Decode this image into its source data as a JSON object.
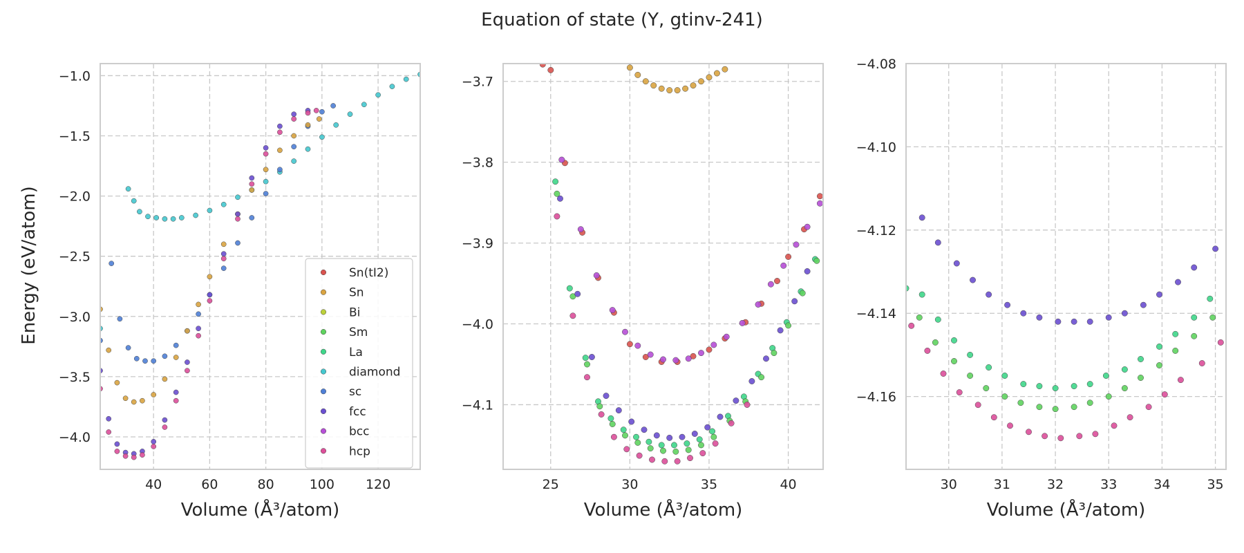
{
  "title": "Equation of state (Y, gtinv-241)",
  "ylabel": "Energy (eV/atom)",
  "legend": {
    "placement": "lower-right",
    "entries": [
      {
        "name": "Sn(tI2)",
        "color": "#d9534f"
      },
      {
        "name": "Sn",
        "color": "#d9a441"
      },
      {
        "name": "Bi",
        "color": "#bcd03a"
      },
      {
        "name": "Sm",
        "color": "#5fd35f"
      },
      {
        "name": "La",
        "color": "#3fd68a"
      },
      {
        "name": "diamond",
        "color": "#45c8cf"
      },
      {
        "name": "sc",
        "color": "#4f7fd6"
      },
      {
        "name": "fcc",
        "color": "#6a4fd0"
      },
      {
        "name": "bcc",
        "color": "#b64fd6"
      },
      {
        "name": "hcp",
        "color": "#dc4f9a"
      }
    ]
  },
  "chart_data": [
    {
      "type": "scatter",
      "panel": "left",
      "xlabel": "Volume (Å³/atom)",
      "ylabel": "Energy (eV/atom)",
      "xlim": [
        21,
        135
      ],
      "ylim": [
        -4.27,
        -0.9
      ],
      "xticks": [
        40,
        60,
        80,
        100,
        120
      ],
      "yticks": [
        -4.0,
        -3.5,
        -3.0,
        -2.5,
        -2.0,
        -1.5,
        -1.0
      ],
      "tick_labels": {
        "x": [
          "40",
          "60",
          "80",
          "100",
          "120"
        ],
        "y": [
          "−4.0",
          "−3.5",
          "−3.0",
          "−2.5",
          "−2.0",
          "−1.5",
          "−1.0"
        ]
      },
      "grid": true,
      "legend": true,
      "series": [
        {
          "name": "diamond",
          "x": [
            21,
            31,
            33,
            35,
            38,
            41,
            44,
            47,
            50,
            55,
            60,
            65,
            70,
            75,
            80,
            85,
            90,
            95,
            100,
            105,
            110,
            115,
            120,
            125,
            130,
            135
          ],
          "y": [
            -3.1,
            -1.94,
            -2.04,
            -2.13,
            -2.17,
            -2.18,
            -2.19,
            -2.19,
            -2.18,
            -2.16,
            -2.12,
            -2.07,
            -2.01,
            -1.95,
            -1.88,
            -1.8,
            -1.71,
            -1.61,
            -1.51,
            -1.41,
            -1.32,
            -1.24,
            -1.16,
            -1.09,
            -1.03,
            -0.99
          ]
        },
        {
          "name": "sc",
          "x": [
            21,
            25,
            28,
            31,
            34,
            37,
            40,
            44,
            48,
            52,
            56,
            60,
            65,
            70,
            75,
            80,
            85,
            90,
            95,
            100,
            104
          ],
          "y": [
            -3.2,
            -2.56,
            -3.02,
            -3.26,
            -3.35,
            -3.37,
            -3.37,
            -3.33,
            -3.24,
            -3.12,
            -2.98,
            -2.82,
            -2.6,
            -2.39,
            -2.18,
            -1.98,
            -1.78,
            -1.59,
            -1.42,
            -1.3,
            -1.25
          ]
        },
        {
          "name": "Sn",
          "x": [
            21,
            24,
            27,
            30,
            33,
            36,
            40,
            44,
            48,
            52,
            56,
            60,
            65,
            70,
            75,
            80,
            85,
            90,
            95,
            99
          ],
          "y": [
            -2.94,
            -3.28,
            -3.55,
            -3.68,
            -3.71,
            -3.7,
            -3.65,
            -3.52,
            -3.34,
            -3.12,
            -2.9,
            -2.67,
            -2.4,
            -2.15,
            -1.95,
            -1.78,
            -1.62,
            -1.5,
            -1.41,
            -1.36
          ]
        },
        {
          "name": "fcc",
          "x": [
            21,
            24,
            27,
            30,
            33,
            36,
            40,
            44,
            48,
            52,
            56,
            60,
            65,
            70,
            75,
            80,
            85,
            90,
            95
          ],
          "y": [
            -3.45,
            -3.85,
            -4.06,
            -4.13,
            -4.14,
            -4.12,
            -4.04,
            -3.86,
            -3.63,
            -3.38,
            -3.1,
            -2.82,
            -2.48,
            -2.15,
            -1.85,
            -1.6,
            -1.42,
            -1.32,
            -1.29
          ]
        },
        {
          "name": "hcp",
          "x": [
            21,
            24,
            27,
            30,
            33,
            36,
            40,
            44,
            48,
            52,
            56,
            60,
            65,
            70,
            75,
            80,
            85,
            90,
            95,
            98
          ],
          "y": [
            -3.6,
            -3.96,
            -4.12,
            -4.16,
            -4.17,
            -4.15,
            -4.08,
            -3.92,
            -3.7,
            -3.45,
            -3.16,
            -2.87,
            -2.52,
            -2.19,
            -1.9,
            -1.65,
            -1.47,
            -1.36,
            -1.31,
            -1.29
          ]
        }
      ]
    },
    {
      "type": "scatter",
      "panel": "middle",
      "xlabel": "Volume (Å³/atom)",
      "xlim": [
        22,
        42.2
      ],
      "ylim": [
        -4.18,
        -3.678
      ],
      "xticks": [
        25,
        30,
        35,
        40
      ],
      "yticks": [
        -4.1,
        -4.0,
        -3.9,
        -3.8,
        -3.7
      ],
      "tick_labels": {
        "x": [
          "25",
          "30",
          "35",
          "40"
        ],
        "y": [
          "−4.1",
          "−4.0",
          "−3.9",
          "−3.8",
          "−3.7"
        ]
      },
      "grid": true,
      "series": [
        {
          "name": "Sn",
          "x": [
            30,
            30.5,
            31,
            31.5,
            32,
            32.5,
            33,
            33.5,
            34,
            34.5,
            35,
            35.5,
            36
          ],
          "y": [
            -3.683,
            -3.692,
            -3.7,
            -3.705,
            -3.709,
            -3.711,
            -3.711,
            -3.709,
            -3.705,
            -3.7,
            -3.695,
            -3.69,
            -3.685
          ]
        },
        {
          "name": "Sn(tI2)",
          "x": [
            24.5,
            25,
            25.9,
            27,
            28,
            29,
            30,
            31,
            32,
            33,
            34,
            35,
            36,
            37.3,
            38.3,
            39.3,
            40,
            41,
            42
          ],
          "y": [
            -3.679,
            -3.686,
            -3.801,
            -3.887,
            -3.943,
            -3.986,
            -4.025,
            -4.041,
            -4.047,
            -4.047,
            -4.04,
            -4.032,
            -4.018,
            -3.998,
            -3.975,
            -3.947,
            -3.917,
            -3.883,
            -3.842
          ]
        },
        {
          "name": "bcc",
          "x": [
            25.7,
            26.9,
            27.9,
            28.9,
            29.7,
            30.5,
            31.3,
            32.1,
            32.9,
            33.7,
            34.5,
            35.3,
            36.1,
            37.1,
            38.1,
            38.9,
            39.7,
            40.5,
            41.2,
            42
          ],
          "y": [
            -3.797,
            -3.883,
            -3.94,
            -3.983,
            -4.01,
            -4.027,
            -4.038,
            -4.044,
            -4.045,
            -4.043,
            -4.036,
            -4.026,
            -4.016,
            -3.999,
            -3.976,
            -3.951,
            -3.928,
            -3.902,
            -3.88,
            -3.851
          ]
        },
        {
          "name": "La",
          "x": [
            25.3,
            26.2,
            27.2,
            28.0,
            28.8,
            29.6,
            30.4,
            31.2,
            32.0,
            32.8,
            33.6,
            34.4,
            35.2,
            36.2,
            37.2,
            38.1,
            39.0,
            39.9,
            40.8,
            41.7
          ],
          "y": [
            -3.824,
            -3.956,
            -4.042,
            -4.096,
            -4.117,
            -4.131,
            -4.14,
            -4.146,
            -4.15,
            -4.15,
            -4.148,
            -4.143,
            -4.133,
            -4.114,
            -4.09,
            -4.062,
            -4.03,
            -3.998,
            -3.96,
            -3.92
          ]
        },
        {
          "name": "Sm",
          "x": [
            25.4,
            26.4,
            27.3,
            28.1,
            28.9,
            29.7,
            30.5,
            31.3,
            32.1,
            32.9,
            33.7,
            34.5,
            35.3,
            36.3,
            37.3,
            38.3,
            39.1,
            40.0,
            40.9,
            41.8
          ],
          "y": [
            -3.839,
            -3.966,
            -4.05,
            -4.102,
            -4.124,
            -4.138,
            -4.147,
            -4.154,
            -4.157,
            -4.158,
            -4.156,
            -4.15,
            -4.14,
            -4.12,
            -4.096,
            -4.066,
            -4.036,
            -4.002,
            -3.962,
            -3.922
          ]
        },
        {
          "name": "fcc",
          "x": [
            25.6,
            26.7,
            27.6,
            28.5,
            29.3,
            30.1,
            30.9,
            31.7,
            32.5,
            33.3,
            34.1,
            34.9,
            35.7,
            36.7,
            37.7,
            38.6,
            39.5,
            40.4,
            41.2
          ],
          "y": [
            -3.845,
            -3.963,
            -4.041,
            -4.089,
            -4.107,
            -4.121,
            -4.131,
            -4.138,
            -4.141,
            -4.14,
            -4.136,
            -4.128,
            -4.115,
            -4.095,
            -4.071,
            -4.043,
            -4.008,
            -3.972,
            -3.935
          ]
        },
        {
          "name": "hcp",
          "x": [
            25.4,
            26.4,
            27.3,
            28.2,
            29.0,
            29.8,
            30.6,
            31.4,
            32.2,
            33.0,
            33.8,
            34.6,
            35.4,
            36.4,
            37.4
          ],
          "y": [
            -3.867,
            -3.99,
            -4.066,
            -4.112,
            -4.14,
            -4.155,
            -4.163,
            -4.168,
            -4.17,
            -4.17,
            -4.166,
            -4.16,
            -4.148,
            -4.123,
            -4.1
          ]
        }
      ]
    },
    {
      "type": "scatter",
      "panel": "right",
      "xlabel": "Volume (Å³/atom)",
      "xlim": [
        29.2,
        35.2
      ],
      "ylim": [
        -4.1775,
        -4.08
      ],
      "xticks": [
        30,
        31,
        32,
        33,
        34,
        35
      ],
      "yticks": [
        -4.16,
        -4.14,
        -4.12,
        -4.1,
        -4.08
      ],
      "tick_labels": {
        "x": [
          "30",
          "31",
          "32",
          "33",
          "34",
          "35"
        ],
        "y": [
          "−4.16",
          "−4.14",
          "−4.12",
          "−4.10",
          "−4.08"
        ]
      },
      "grid": true,
      "series": [
        {
          "name": "fcc",
          "x": [
            29.5,
            29.8,
            30.15,
            30.45,
            30.75,
            31.1,
            31.4,
            31.7,
            32.05,
            32.35,
            32.65,
            33.0,
            33.3,
            33.65,
            33.95,
            34.3,
            34.6,
            35.0
          ],
          "y": [
            -4.117,
            -4.123,
            -4.128,
            -4.132,
            -4.1355,
            -4.138,
            -4.14,
            -4.141,
            -4.142,
            -4.142,
            -4.142,
            -4.141,
            -4.14,
            -4.138,
            -4.1355,
            -4.1325,
            -4.129,
            -4.1245
          ]
        },
        {
          "name": "La",
          "x": [
            29.2,
            29.5,
            29.8,
            30.1,
            30.4,
            30.75,
            31.05,
            31.4,
            31.7,
            32.0,
            32.35,
            32.65,
            32.95,
            33.3,
            33.6,
            33.95,
            34.25,
            34.6,
            34.9
          ],
          "y": [
            -4.134,
            -4.1355,
            -4.1415,
            -4.1465,
            -4.15,
            -4.153,
            -4.155,
            -4.157,
            -4.1575,
            -4.158,
            -4.1575,
            -4.157,
            -4.155,
            -4.1535,
            -4.151,
            -4.148,
            -4.145,
            -4.141,
            -4.1365
          ]
        },
        {
          "name": "Sm",
          "x": [
            29.45,
            29.75,
            30.1,
            30.4,
            30.7,
            31.05,
            31.35,
            31.7,
            32.0,
            32.35,
            32.65,
            33.0,
            33.3,
            33.6,
            33.95,
            34.25,
            34.6,
            34.95
          ],
          "y": [
            -4.141,
            -4.147,
            -4.1515,
            -4.155,
            -4.158,
            -4.16,
            -4.1615,
            -4.1625,
            -4.163,
            -4.1625,
            -4.1615,
            -4.16,
            -4.158,
            -4.1555,
            -4.1525,
            -4.149,
            -4.1455,
            -4.141
          ]
        },
        {
          "name": "hcp",
          "x": [
            29.3,
            29.6,
            29.9,
            30.2,
            30.55,
            30.85,
            31.15,
            31.5,
            31.8,
            32.1,
            32.45,
            32.75,
            33.1,
            33.4,
            33.75,
            34.05,
            34.35,
            34.75,
            35.1
          ],
          "y": [
            -4.143,
            -4.149,
            -4.1545,
            -4.159,
            -4.162,
            -4.165,
            -4.167,
            -4.1685,
            -4.1695,
            -4.17,
            -4.1695,
            -4.169,
            -4.167,
            -4.165,
            -4.1625,
            -4.1595,
            -4.156,
            -4.152,
            -4.147
          ]
        }
      ]
    }
  ]
}
